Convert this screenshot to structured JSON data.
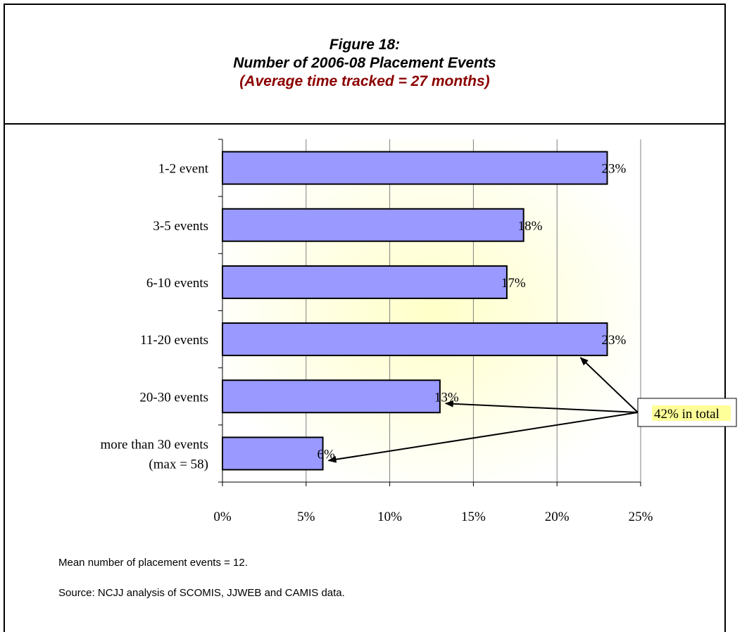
{
  "header": {
    "line1": "Figure 18:",
    "line2": "Number of 2006-08 Placement Events",
    "line3": "(Average time tracked = 27 months)"
  },
  "chart_data": {
    "type": "bar",
    "orientation": "horizontal",
    "categories": [
      "1-2 event",
      "3-5 events",
      "6-10 events",
      "11-20 events",
      "20-30 events",
      "more than 30 events (max = 58)"
    ],
    "category_lines": [
      [
        "1-2 event"
      ],
      [
        "3-5 events"
      ],
      [
        "6-10 events"
      ],
      [
        "11-20 events"
      ],
      [
        "20-30 events"
      ],
      [
        "more than 30 events",
        "(max = 58)"
      ]
    ],
    "values": [
      23,
      18,
      17,
      23,
      13,
      6
    ],
    "data_labels": [
      "23%",
      "18%",
      "17%",
      "23%",
      "13%",
      "6%"
    ],
    "xticks": [
      "0%",
      "5%",
      "10%",
      "15%",
      "20%",
      "25%"
    ],
    "xlim": [
      0,
      25
    ],
    "grid": true,
    "bar_color": "#9999ff",
    "annotation": "42% in total",
    "annotation_bg": "#ffff99",
    "annotation_points_to": [
      "11-20 events",
      "20-30 events",
      "more than 30 events (max = 58)"
    ]
  },
  "footer": {
    "note1": "Mean number of placement events = 12.",
    "note2": "Source: NCJJ analysis of SCOMIS, JJWEB and CAMIS data."
  }
}
